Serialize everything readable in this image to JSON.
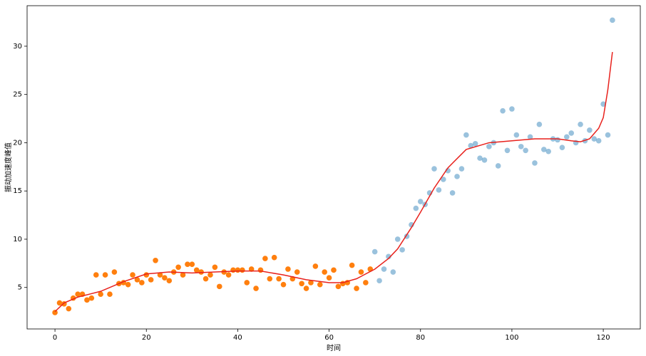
{
  "chart_data": {
    "type": "scatter",
    "xlabel": "时间",
    "ylabel": "振动加速度峰值",
    "xlim": [
      -6.1,
      128.1
    ],
    "ylim": [
      0.7,
      34.2
    ],
    "xticks": [
      0,
      20,
      40,
      60,
      80,
      100,
      120
    ],
    "yticks": [
      5,
      10,
      15,
      20,
      25,
      30
    ],
    "series": [
      {
        "style": "scatter",
        "color": "#ff7f0e",
        "alpha": 1,
        "x": [
          0,
          1,
          2,
          3,
          4,
          5,
          6,
          7,
          8,
          9,
          10,
          11,
          12,
          13,
          14,
          15,
          16,
          17,
          18,
          19,
          20,
          21,
          22,
          23,
          24,
          25,
          26,
          27,
          28,
          29,
          30,
          31,
          32,
          33,
          34,
          35,
          36,
          37,
          38,
          39,
          40,
          41,
          42,
          43,
          44,
          45,
          46,
          47,
          48,
          49,
          50,
          51,
          52,
          53,
          54,
          55,
          56,
          57,
          58,
          59,
          60,
          61,
          62,
          63,
          64,
          65,
          66,
          67,
          68,
          69
        ],
        "values": [
          2.4,
          3.4,
          3.3,
          2.8,
          3.9,
          4.3,
          4.3,
          3.7,
          3.9,
          6.3,
          4.3,
          6.3,
          4.3,
          6.6,
          5.4,
          5.5,
          5.3,
          6.3,
          5.8,
          5.5,
          6.3,
          5.8,
          7.8,
          6.3,
          6.0,
          5.7,
          6.6,
          7.1,
          6.3,
          7.4,
          7.4,
          6.8,
          6.6,
          5.9,
          6.3,
          7.1,
          5.1,
          6.6,
          6.3,
          6.8,
          6.8,
          6.8,
          5.5,
          6.9,
          4.9,
          6.8,
          8.0,
          5.9,
          8.1,
          5.9,
          5.3,
          6.9,
          5.9,
          6.6,
          5.4,
          4.9,
          5.5,
          7.2,
          5.3,
          6.6,
          6.0,
          6.8,
          5.1,
          5.4,
          5.5,
          7.3,
          4.9,
          6.6,
          5.5,
          6.9
        ]
      },
      {
        "style": "scatter",
        "color": "#1f77b4",
        "alpha": 0.45,
        "x": [
          70,
          71,
          72,
          73,
          74,
          75,
          76,
          77,
          78,
          79,
          80,
          81,
          82,
          83,
          84,
          85,
          86,
          87,
          88,
          89,
          90,
          91,
          92,
          93,
          94,
          95,
          96,
          97,
          98,
          99,
          100,
          101,
          102,
          103,
          104,
          105,
          106,
          107,
          108,
          109,
          110,
          111,
          112,
          113,
          114,
          115,
          116,
          117,
          118,
          119,
          120,
          121,
          122
        ],
        "values": [
          8.7,
          5.7,
          6.9,
          8.2,
          6.6,
          10.0,
          8.9,
          10.3,
          11.5,
          13.2,
          13.9,
          13.6,
          14.8,
          17.3,
          15.1,
          16.2,
          17.1,
          14.8,
          16.5,
          17.3,
          20.8,
          19.7,
          19.9,
          18.4,
          18.2,
          19.6,
          20.0,
          17.6,
          23.3,
          19.2,
          23.5,
          20.8,
          19.6,
          19.2,
          20.6,
          17.9,
          21.9,
          19.3,
          19.1,
          20.4,
          20.3,
          19.5,
          20.6,
          21.0,
          20.0,
          21.9,
          20.2,
          21.3,
          20.4,
          20.2,
          24.0,
          20.8,
          32.7
        ]
      },
      {
        "style": "line",
        "color": "#e8211c",
        "alpha": 1,
        "x": [
          0,
          2,
          5,
          10,
          15,
          20,
          25,
          30,
          35,
          40,
          45,
          50,
          55,
          60,
          63,
          66,
          70,
          73,
          75,
          78,
          80,
          83,
          86,
          90,
          95,
          100,
          105,
          110,
          113,
          115,
          117,
          119,
          120,
          121,
          122
        ],
        "values": [
          2.5,
          3.4,
          4.0,
          4.6,
          5.6,
          6.4,
          6.6,
          6.5,
          6.6,
          6.7,
          6.7,
          6.3,
          5.8,
          5.5,
          5.5,
          5.9,
          6.9,
          8.0,
          9.0,
          11.2,
          12.8,
          15.3,
          17.4,
          19.3,
          20.0,
          20.2,
          20.4,
          20.4,
          20.2,
          20.1,
          20.4,
          21.5,
          22.6,
          25.5,
          29.4
        ]
      }
    ]
  }
}
